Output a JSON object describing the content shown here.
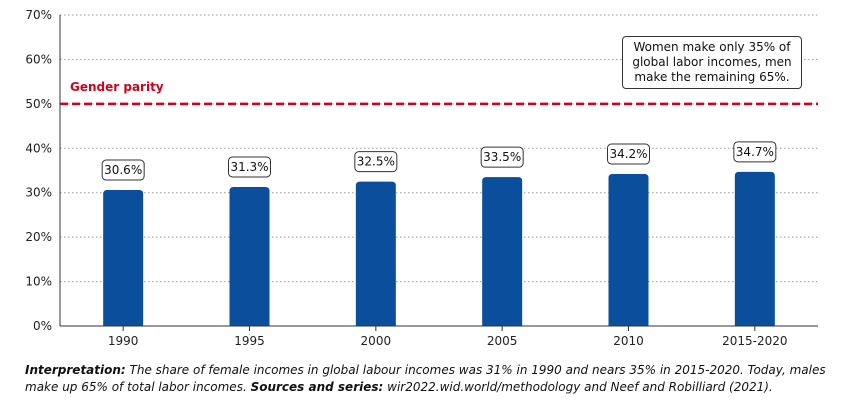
{
  "chart_data": {
    "type": "bar",
    "categories": [
      "1990",
      "1995",
      "2000",
      "2005",
      "2010",
      "2015-2020"
    ],
    "values": [
      30.6,
      31.3,
      32.5,
      33.5,
      34.2,
      34.7
    ],
    "data_labels": [
      "30.6%",
      "31.3%",
      "32.5%",
      "33.5%",
      "34.2%",
      "34.7%"
    ],
    "y_ticks": [
      "0%",
      "10%",
      "20%",
      "30%",
      "40%",
      "50%",
      "60%",
      "70%"
    ],
    "ylim": [
      0,
      70
    ],
    "grid": "horizontal dotted",
    "bar_color": "#0b4f9c",
    "reference_line": {
      "value": 50,
      "label": "Gender parity",
      "color": "#d0021b"
    },
    "annotation": "Women make only 35% of global labor incomes, men make the remaining  65%."
  },
  "note": {
    "interpretation_label": "Interpretation:",
    "interpretation_text": " The share of female incomes in global labour incomes was 31% in 1990 and nears 35% in 2015-2020. Today, males make up 65% of total labor incomes. ",
    "sources_label": "Sources and series:",
    "sources_text": " wir2022.wid.world/methodology and Neef and Robilliard (2021)."
  }
}
